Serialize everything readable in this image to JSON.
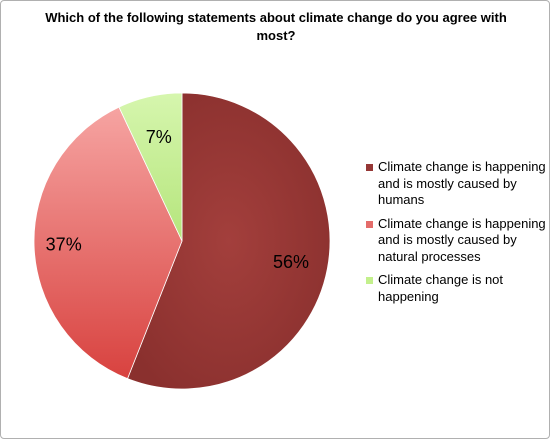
{
  "chart_data": {
    "type": "pie",
    "title": "Which of the following statements about climate change do you agree with most?",
    "categories": [
      "Climate change is happening and is mostly caused by humans",
      "Climate change is happening and is mostly caused by natural processes",
      "Climate change is not happening"
    ],
    "values": [
      56,
      37,
      7
    ],
    "data_labels": [
      "56%",
      "37%",
      "7%"
    ],
    "colors": [
      "#953735",
      "#e46c6a",
      "#c3f08c"
    ],
    "legend_position": "right"
  }
}
